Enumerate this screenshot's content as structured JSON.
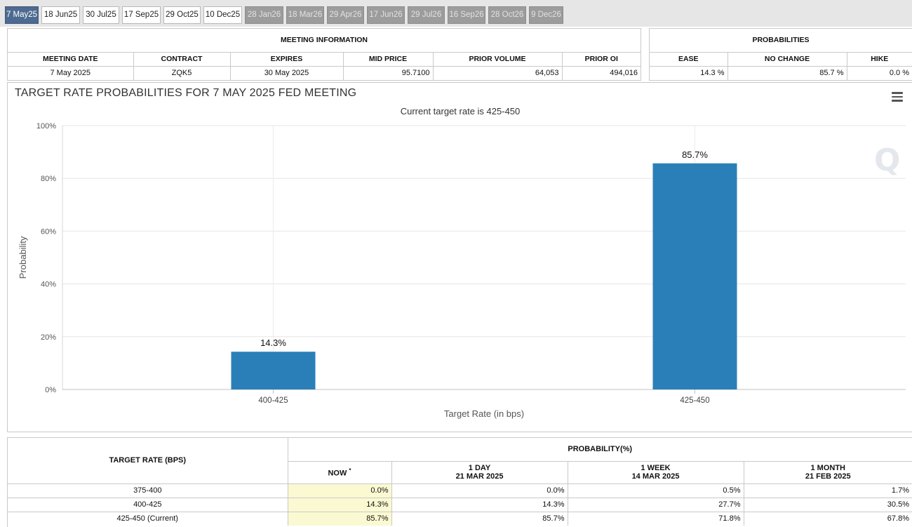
{
  "tabs": [
    {
      "label": "7 May25",
      "state": "active"
    },
    {
      "label": "18 Jun25",
      "state": "normal"
    },
    {
      "label": "30 Jul25",
      "state": "normal"
    },
    {
      "label": "17 Sep25",
      "state": "normal"
    },
    {
      "label": "29 Oct25",
      "state": "normal"
    },
    {
      "label": "10 Dec25",
      "state": "normal"
    },
    {
      "label": "28 Jan26",
      "state": "future"
    },
    {
      "label": "18 Mar26",
      "state": "future"
    },
    {
      "label": "29 Apr26",
      "state": "future"
    },
    {
      "label": "17 Jun26",
      "state": "future"
    },
    {
      "label": "29 Jul26",
      "state": "future"
    },
    {
      "label": "16 Sep26",
      "state": "future"
    },
    {
      "label": "28 Oct26",
      "state": "future"
    },
    {
      "label": "9 Dec26",
      "state": "future"
    }
  ],
  "meeting_info": {
    "section_title": "MEETING INFORMATION",
    "headers": [
      "MEETING DATE",
      "CONTRACT",
      "EXPIRES",
      "MID PRICE",
      "PRIOR VOLUME",
      "PRIOR OI"
    ],
    "row": [
      "7 May 2025",
      "ZQK5",
      "30 May 2025",
      "95.7100",
      "64,053",
      "494,016"
    ]
  },
  "probabilities": {
    "section_title": "PROBABILITIES",
    "headers": [
      "EASE",
      "NO CHANGE",
      "HIKE"
    ],
    "row": [
      "14.3 %",
      "85.7 %",
      "0.0 %"
    ]
  },
  "chart_data": {
    "type": "bar",
    "title": "TARGET RATE PROBABILITIES FOR 7 MAY 2025 FED MEETING",
    "subtitle": "Current target rate is 425-450",
    "xlabel": "Target Rate (in bps)",
    "ylabel": "Probability",
    "categories": [
      "400-425",
      "425-450"
    ],
    "values": [
      14.3,
      85.7
    ],
    "value_labels": [
      "14.3%",
      "85.7%"
    ],
    "ylim": [
      0,
      100
    ],
    "yticks": [
      0,
      20,
      40,
      60,
      80,
      100
    ],
    "ytick_labels": [
      "0%",
      "20%",
      "40%",
      "60%",
      "80%",
      "100%"
    ],
    "grid": true,
    "bar_color": "#2a7fb8"
  },
  "bottom_table": {
    "rate_header": "TARGET RATE (BPS)",
    "prob_header": "PROBABILITY(%)",
    "columns": [
      {
        "line1": "NOW",
        "line2": "",
        "mark": "*"
      },
      {
        "line1": "1 DAY",
        "line2": "21 MAR 2025",
        "mark": ""
      },
      {
        "line1": "1 WEEK",
        "line2": "14 MAR 2025",
        "mark": ""
      },
      {
        "line1": "1 MONTH",
        "line2": "21 FEB 2025",
        "mark": ""
      }
    ],
    "rows": [
      {
        "rate": "375-400",
        "values": [
          "0.0%",
          "0.0%",
          "0.5%",
          "1.7%"
        ]
      },
      {
        "rate": "400-425",
        "values": [
          "14.3%",
          "14.3%",
          "27.7%",
          "30.5%"
        ]
      },
      {
        "rate": "425-450 (Current)",
        "values": [
          "85.7%",
          "85.7%",
          "71.8%",
          "67.8%"
        ]
      }
    ]
  },
  "colors": {
    "tab_active": "#4d6a90",
    "tab_future": "#9c9c9c",
    "bar": "#2a7fb8",
    "now_highlight": "#fbf9d2"
  }
}
